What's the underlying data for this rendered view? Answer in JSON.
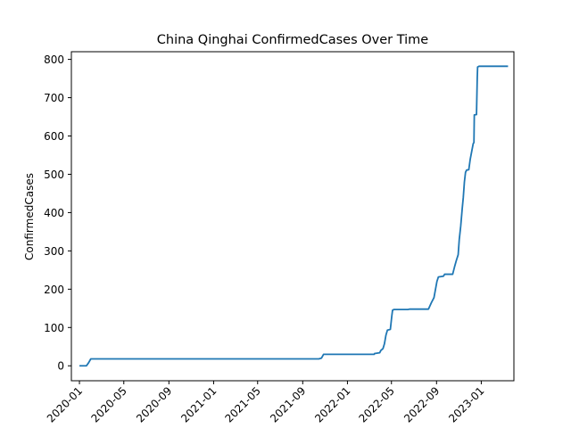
{
  "chart_data": {
    "type": "line",
    "title": "China Qinghai ConfirmedCases Over Time",
    "xlabel": "",
    "ylabel": "ConfirmedCases",
    "xlim": [
      "2019-12-10",
      "2023-03-31"
    ],
    "ylim": [
      -39,
      820
    ],
    "yticks": [
      0,
      100,
      200,
      300,
      400,
      500,
      600,
      700,
      800
    ],
    "xticks": [
      "2020-01",
      "2020-05",
      "2020-09",
      "2021-01",
      "2021-05",
      "2021-09",
      "2022-01",
      "2022-05",
      "2022-09",
      "2023-01"
    ],
    "grid": false,
    "series": [
      {
        "color": "#1f77b4",
        "points": [
          [
            "2020-01-01",
            0
          ],
          [
            "2020-01-20",
            0
          ],
          [
            "2020-01-26",
            8
          ],
          [
            "2020-02-01",
            18
          ],
          [
            "2021-10-15",
            18
          ],
          [
            "2021-10-22",
            20
          ],
          [
            "2021-10-28",
            30
          ],
          [
            "2022-03-15",
            30
          ],
          [
            "2022-03-16",
            32
          ],
          [
            "2022-03-30",
            34
          ],
          [
            "2022-04-02",
            40
          ],
          [
            "2022-04-08",
            45
          ],
          [
            "2022-04-12",
            58
          ],
          [
            "2022-04-16",
            80
          ],
          [
            "2022-04-20",
            93
          ],
          [
            "2022-04-28",
            95
          ],
          [
            "2022-05-02",
            130
          ],
          [
            "2022-05-04",
            145
          ],
          [
            "2022-05-08",
            147
          ],
          [
            "2022-06-15",
            147
          ],
          [
            "2022-06-20",
            148
          ],
          [
            "2022-08-10",
            148
          ],
          [
            "2022-08-18",
            165
          ],
          [
            "2022-08-25",
            178
          ],
          [
            "2022-09-02",
            220
          ],
          [
            "2022-09-06",
            232
          ],
          [
            "2022-09-20",
            234
          ],
          [
            "2022-09-23",
            239
          ],
          [
            "2022-10-15",
            239
          ],
          [
            "2022-10-20",
            258
          ],
          [
            "2022-10-25",
            275
          ],
          [
            "2022-10-30",
            290
          ],
          [
            "2022-11-02",
            330
          ],
          [
            "2022-11-06",
            365
          ],
          [
            "2022-11-10",
            410
          ],
          [
            "2022-11-13",
            440
          ],
          [
            "2022-11-16",
            480
          ],
          [
            "2022-11-19",
            505
          ],
          [
            "2022-11-22",
            511
          ],
          [
            "2022-11-28",
            512
          ],
          [
            "2022-12-02",
            540
          ],
          [
            "2022-12-06",
            560
          ],
          [
            "2022-12-10",
            580
          ],
          [
            "2022-12-12",
            583
          ],
          [
            "2022-12-13",
            655
          ],
          [
            "2022-12-19",
            656
          ],
          [
            "2022-12-21",
            750
          ],
          [
            "2022-12-22",
            780
          ],
          [
            "2022-12-26",
            782
          ],
          [
            "2023-03-15",
            782
          ]
        ]
      }
    ]
  }
}
